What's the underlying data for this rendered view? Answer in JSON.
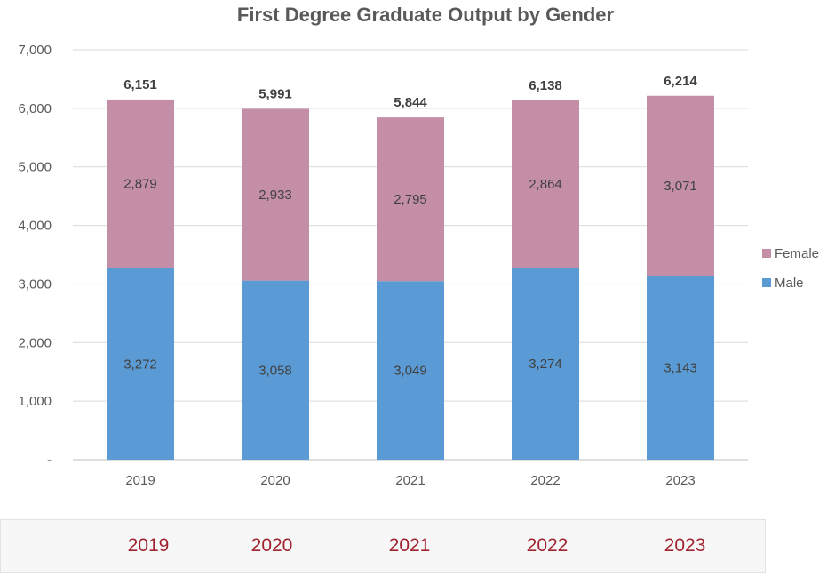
{
  "colors": {
    "female": "#c38ea6",
    "male": "#5b9bd5",
    "accent": "#a0232f"
  },
  "chart_data": {
    "type": "bar",
    "stacked": true,
    "title": "First Degree Graduate Output by Gender",
    "categories": [
      "2019",
      "2020",
      "2021",
      "2022",
      "2023"
    ],
    "series": [
      {
        "name": "Male",
        "values": [
          3272,
          3058,
          3049,
          3274,
          3143
        ],
        "labels": [
          "3,272",
          "3,058",
          "3,049",
          "3,274",
          "3,143"
        ]
      },
      {
        "name": "Female",
        "values": [
          2879,
          2933,
          2795,
          2864,
          3071
        ],
        "labels": [
          "2,879",
          "2,933",
          "2,795",
          "2,864",
          "3,071"
        ]
      }
    ],
    "totals": [
      "6,151",
      "5,991",
      "5,844",
      "6,138",
      "6,214"
    ],
    "ylim": [
      0,
      7000
    ],
    "yticks": [
      0,
      1000,
      2000,
      3000,
      4000,
      5000,
      6000,
      7000
    ],
    "ytick_labels": [
      "-",
      "1,000",
      "2,000",
      "3,000",
      "4,000",
      "5,000",
      "6,000",
      "7,000"
    ],
    "grid": true,
    "legend": {
      "position": "right",
      "entries": [
        "Female",
        "Male"
      ]
    }
  },
  "year_tabs": [
    "2019",
    "2020",
    "2021",
    "2022",
    "2023"
  ]
}
